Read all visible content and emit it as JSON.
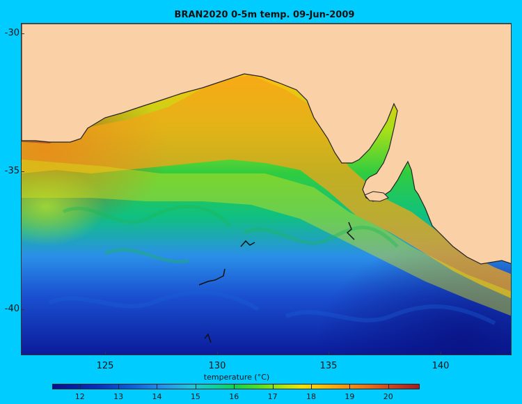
{
  "title": "BRAN2020 0-5m temp. 09-Jun-2009",
  "map": {
    "lat_ticks": [
      "-30",
      "-35",
      "-40"
    ],
    "lon_ticks": [
      "125",
      "130",
      "135",
      "140"
    ],
    "land_color": "#FAD0A6",
    "background_color": "#00CCFF"
  },
  "colorbar": {
    "label": "temperature (°C)",
    "ticks": [
      "12",
      "13",
      "14",
      "15",
      "16",
      "17",
      "18",
      "19",
      "20"
    ],
    "range": [
      11.3,
      20.8
    ]
  }
}
